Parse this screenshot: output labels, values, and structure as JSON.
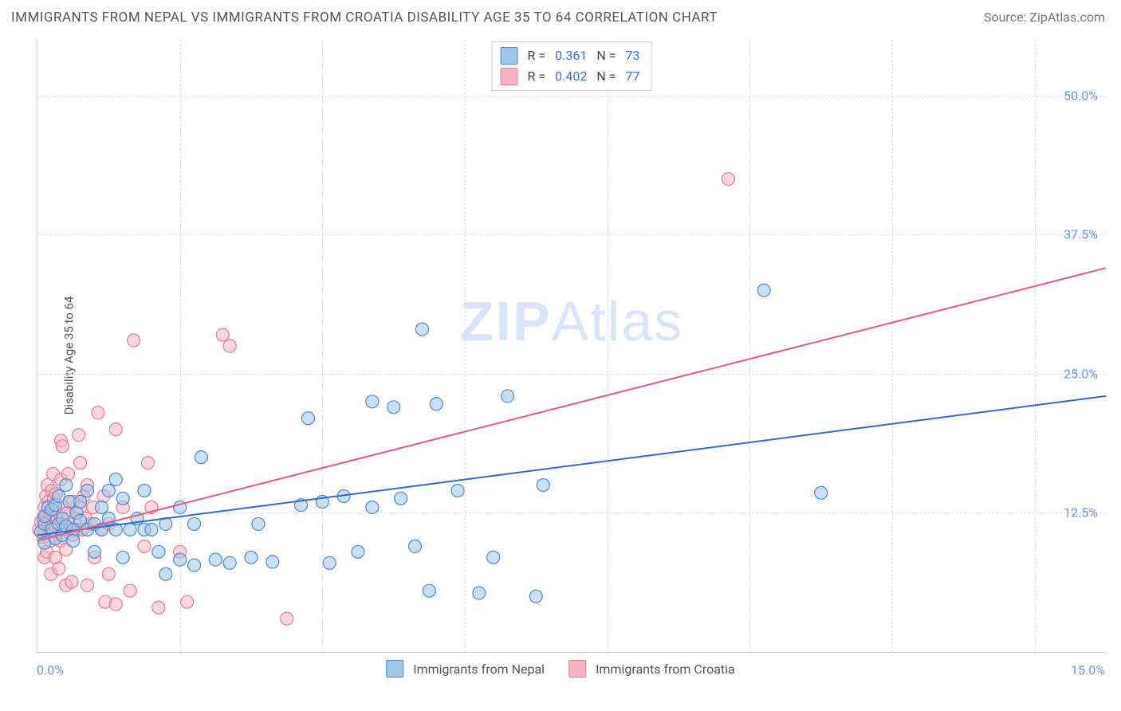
{
  "title": "IMMIGRANTS FROM NEPAL VS IMMIGRANTS FROM CROATIA DISABILITY AGE 35 TO 64 CORRELATION CHART",
  "source": "Source: ZipAtlas.com",
  "watermark1": "ZIP",
  "watermark2": "Atlas",
  "ylabel": "Disability Age 35 to 64",
  "xmin_label": "0.0%",
  "xmax_label": "15.0%",
  "stats": {
    "r_label": "R  =",
    "n_label": "N  =",
    "series": [
      {
        "r": "0.361",
        "n": "73"
      },
      {
        "r": "0.402",
        "n": "77"
      }
    ]
  },
  "legend": {
    "series_a": "Immigrants from Nepal",
    "series_b": "Immigrants from Croatia"
  },
  "chart": {
    "type": "scatter",
    "xlim": [
      0.0,
      15.0
    ],
    "ylim": [
      0.0,
      55.0
    ],
    "yticks": [
      12.5,
      25.0,
      37.5,
      50.0
    ],
    "ytick_labels": [
      "12.5%",
      "25.0%",
      "37.5%",
      "50.0%"
    ],
    "xticks": [
      2.0,
      4.0,
      6.0,
      8.0,
      10.0,
      12.0,
      14.0
    ],
    "grid_color": "#dddddd",
    "border_color": "#cccccc",
    "background_color": "#ffffff",
    "label_color": "#6495ED",
    "title_fontsize": 17,
    "label_fontsize": 15,
    "tick_fontsize": 16,
    "marker_radius": 8,
    "marker_opacity": 0.55,
    "marker_stroke_width": 1.2,
    "line_width": 2,
    "series": [
      {
        "name": "Immigrants from Nepal",
        "fill": "#9ec5e8",
        "stroke": "#4a8bd0",
        "line_color": "#2e6bd0",
        "trend": {
          "y0": 10.5,
          "y1": 23.0
        },
        "points": [
          [
            0.05,
            10.8
          ],
          [
            0.1,
            11.5
          ],
          [
            0.1,
            12.2
          ],
          [
            0.1,
            9.8
          ],
          [
            0.15,
            13.0
          ],
          [
            0.2,
            11.0
          ],
          [
            0.2,
            12.8
          ],
          [
            0.25,
            10.2
          ],
          [
            0.25,
            13.2
          ],
          [
            0.3,
            11.5
          ],
          [
            0.3,
            14.0
          ],
          [
            0.35,
            10.5
          ],
          [
            0.35,
            12.0
          ],
          [
            0.4,
            11.3
          ],
          [
            0.4,
            15.0
          ],
          [
            0.45,
            13.5
          ],
          [
            0.5,
            11.0
          ],
          [
            0.5,
            10.0
          ],
          [
            0.55,
            12.5
          ],
          [
            0.6,
            11.8
          ],
          [
            0.6,
            13.5
          ],
          [
            0.7,
            11.0
          ],
          [
            0.7,
            14.5
          ],
          [
            0.8,
            11.5
          ],
          [
            0.8,
            9.0
          ],
          [
            0.9,
            13.0
          ],
          [
            0.9,
            11.0
          ],
          [
            1.0,
            14.5
          ],
          [
            1.0,
            12.0
          ],
          [
            1.1,
            11.0
          ],
          [
            1.1,
            15.5
          ],
          [
            1.2,
            13.8
          ],
          [
            1.2,
            8.5
          ],
          [
            1.3,
            11.0
          ],
          [
            1.4,
            12.0
          ],
          [
            1.5,
            11.0
          ],
          [
            1.5,
            14.5
          ],
          [
            1.6,
            11.0
          ],
          [
            1.7,
            9.0
          ],
          [
            1.8,
            11.5
          ],
          [
            1.8,
            7.0
          ],
          [
            2.0,
            8.3
          ],
          [
            2.0,
            13.0
          ],
          [
            2.2,
            7.8
          ],
          [
            2.2,
            11.5
          ],
          [
            2.3,
            17.5
          ],
          [
            2.5,
            8.3
          ],
          [
            2.7,
            8.0
          ],
          [
            3.0,
            8.5
          ],
          [
            3.1,
            11.5
          ],
          [
            3.3,
            8.1
          ],
          [
            3.7,
            13.2
          ],
          [
            3.8,
            21.0
          ],
          [
            4.0,
            13.5
          ],
          [
            4.1,
            8.0
          ],
          [
            4.3,
            14.0
          ],
          [
            4.5,
            9.0
          ],
          [
            4.7,
            22.5
          ],
          [
            4.7,
            13.0
          ],
          [
            5.0,
            22.0
          ],
          [
            5.1,
            13.8
          ],
          [
            5.3,
            9.5
          ],
          [
            5.4,
            29.0
          ],
          [
            5.5,
            5.5
          ],
          [
            5.6,
            22.3
          ],
          [
            5.9,
            14.5
          ],
          [
            6.2,
            5.3
          ],
          [
            6.4,
            8.5
          ],
          [
            6.6,
            23.0
          ],
          [
            7.0,
            5.0
          ],
          [
            7.1,
            15.0
          ],
          [
            10.2,
            32.5
          ],
          [
            11.0,
            14.3
          ]
        ]
      },
      {
        "name": "Immigrants from Croatia",
        "fill": "#f4b6c3",
        "stroke": "#e57a95",
        "line_color": "#e55a85",
        "trend": {
          "y0": 10.0,
          "y1": 34.5
        },
        "points": [
          [
            0.02,
            11.0
          ],
          [
            0.05,
            11.7
          ],
          [
            0.08,
            12.0
          ],
          [
            0.08,
            10.3
          ],
          [
            0.1,
            13.0
          ],
          [
            0.1,
            11.0
          ],
          [
            0.1,
            8.5
          ],
          [
            0.12,
            14.0
          ],
          [
            0.12,
            12.3
          ],
          [
            0.13,
            9.0
          ],
          [
            0.14,
            15.0
          ],
          [
            0.15,
            11.5
          ],
          [
            0.15,
            13.5
          ],
          [
            0.16,
            12.0
          ],
          [
            0.18,
            12.3
          ],
          [
            0.18,
            10.0
          ],
          [
            0.19,
            7.0
          ],
          [
            0.2,
            11.5
          ],
          [
            0.2,
            14.5
          ],
          [
            0.21,
            12.0
          ],
          [
            0.22,
            16.0
          ],
          [
            0.22,
            11.0
          ],
          [
            0.23,
            13.8
          ],
          [
            0.25,
            8.5
          ],
          [
            0.25,
            11.3
          ],
          [
            0.26,
            14.2
          ],
          [
            0.28,
            12.0
          ],
          [
            0.3,
            7.5
          ],
          [
            0.3,
            12.5
          ],
          [
            0.32,
            10.0
          ],
          [
            0.33,
            19.0
          ],
          [
            0.33,
            15.5
          ],
          [
            0.35,
            11.0
          ],
          [
            0.35,
            18.5
          ],
          [
            0.38,
            13.0
          ],
          [
            0.4,
            9.2
          ],
          [
            0.4,
            6.0
          ],
          [
            0.42,
            12.5
          ],
          [
            0.43,
            16.0
          ],
          [
            0.45,
            11.5
          ],
          [
            0.48,
            6.3
          ],
          [
            0.5,
            10.5
          ],
          [
            0.5,
            13.5
          ],
          [
            0.53,
            12.0
          ],
          [
            0.55,
            11.0
          ],
          [
            0.58,
            19.5
          ],
          [
            0.6,
            17.0
          ],
          [
            0.6,
            13.0
          ],
          [
            0.63,
            11.0
          ],
          [
            0.65,
            14.0
          ],
          [
            0.68,
            12.0
          ],
          [
            0.7,
            6.0
          ],
          [
            0.7,
            15.0
          ],
          [
            0.75,
            11.5
          ],
          [
            0.78,
            13.0
          ],
          [
            0.8,
            8.5
          ],
          [
            0.85,
            21.5
          ],
          [
            0.9,
            11.0
          ],
          [
            0.93,
            14.0
          ],
          [
            0.95,
            4.5
          ],
          [
            1.0,
            7.0
          ],
          [
            1.0,
            11.5
          ],
          [
            1.1,
            20.0
          ],
          [
            1.1,
            4.3
          ],
          [
            1.2,
            13.0
          ],
          [
            1.3,
            5.5
          ],
          [
            1.35,
            28.0
          ],
          [
            1.5,
            9.5
          ],
          [
            1.55,
            17.0
          ],
          [
            1.6,
            13.0
          ],
          [
            1.7,
            4.0
          ],
          [
            2.0,
            9.0
          ],
          [
            2.1,
            4.5
          ],
          [
            2.6,
            28.5
          ],
          [
            2.7,
            27.5
          ],
          [
            3.5,
            3.0
          ],
          [
            9.7,
            42.5
          ]
        ]
      }
    ]
  }
}
